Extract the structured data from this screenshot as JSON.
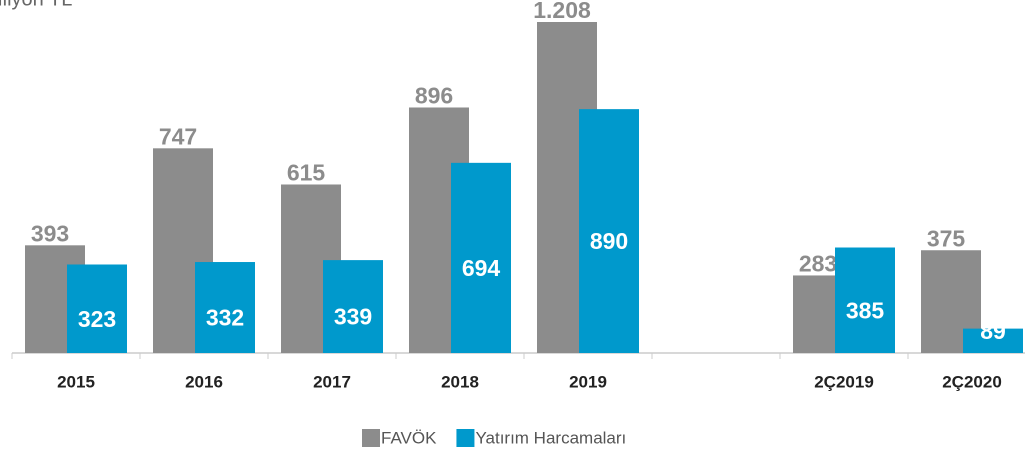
{
  "chart_data": {
    "type": "bar",
    "title": "Milyon TL",
    "categories": [
      "2015",
      "2016",
      "2017",
      "2018",
      "2019",
      null,
      "2Ç2019",
      "2Ç2020"
    ],
    "series": [
      {
        "name": "FAVÖK",
        "color": "#8c8c8c",
        "values": [
          393,
          747,
          615,
          896,
          1208,
          null,
          283,
          375
        ],
        "value_labels": [
          "393",
          "747",
          "615",
          "896",
          "1.208",
          null,
          "283",
          "375"
        ]
      },
      {
        "name": "Yatırım Harcamaları",
        "color": "#0099cc",
        "values": [
          323,
          332,
          339,
          694,
          890,
          null,
          385,
          89
        ]
      }
    ]
  }
}
